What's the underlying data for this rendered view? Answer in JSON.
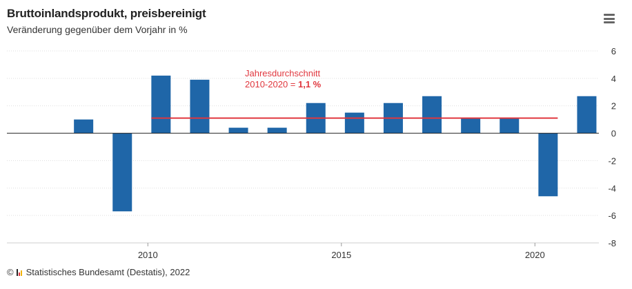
{
  "header": {
    "title": "Bruttoinlandsprodukt, preisbereinigt",
    "subtitle": "Veränderung gegenüber dem Vorjahr in %"
  },
  "menu": {
    "icon": "hamburger-menu-icon"
  },
  "footer": {
    "copyright_symbol": "©",
    "logo_icon": "destatis-logo-icon",
    "source": "Statistisches Bundesamt (Destatis), 2022"
  },
  "colors": {
    "bar": "#1f66a8",
    "average_line": "#e0363d",
    "annotation": "#e0363d",
    "axis": "#222222",
    "grid": "#dddddd"
  },
  "chart_data": {
    "type": "bar",
    "categories": [
      2008,
      2009,
      2010,
      2011,
      2012,
      2013,
      2014,
      2015,
      2016,
      2017,
      2018,
      2019,
      2020,
      2021
    ],
    "values": [
      1.0,
      -5.7,
      4.2,
      3.9,
      0.4,
      0.4,
      2.2,
      1.5,
      2.2,
      2.7,
      1.1,
      1.1,
      -4.6,
      2.7
    ],
    "x_tick_labels": [
      "2010",
      "2015",
      "2020"
    ],
    "y_ticks": [
      6,
      4,
      2,
      0,
      -2,
      -4,
      -6,
      -8
    ],
    "ylim": [
      -8,
      6
    ],
    "average": {
      "value": 1.1,
      "from": 2010,
      "to": 2020
    },
    "annotation": {
      "line1": "Jahresdurchschnitt",
      "line2_prefix": "2010-2020 = ",
      "line2_value": "1,1 %"
    },
    "grid": true,
    "y_axis_position": "right"
  }
}
